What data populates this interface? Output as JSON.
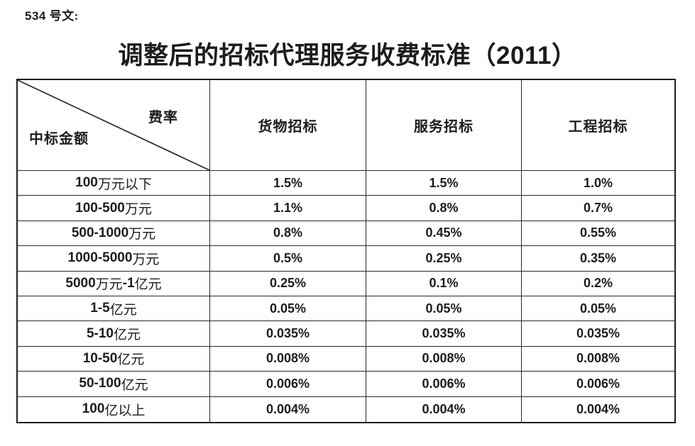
{
  "doc": {
    "ref_label": "534 号文:",
    "title": "调整后的招标代理服务收费标准（2011）"
  },
  "table": {
    "corner": {
      "col_axis_label": "费率",
      "row_axis_label": "中标金额"
    },
    "columns": [
      "货物招标",
      "服务招标",
      "工程招标"
    ],
    "rows": [
      {
        "label": "100 万元以下",
        "values": [
          "1.5%",
          "1.5%",
          "1.0%"
        ]
      },
      {
        "label": "100-500 万元",
        "values": [
          "1.1%",
          "0.8%",
          "0.7%"
        ]
      },
      {
        "label": "500-1000 万元",
        "values": [
          "0.8%",
          "0.45%",
          "0.55%"
        ]
      },
      {
        "label": "1000-5000 万元",
        "values": [
          "0.5%",
          "0.25%",
          "0.35%"
        ]
      },
      {
        "label": "5000 万元-1 亿元",
        "values": [
          "0.25%",
          "0.1%",
          "0.2%"
        ]
      },
      {
        "label": "1-5 亿元",
        "values": [
          "0.05%",
          "0.05%",
          "0.05%"
        ]
      },
      {
        "label": "5-10 亿元",
        "values": [
          "0.035%",
          "0.035%",
          "0.035%"
        ]
      },
      {
        "label": "10-50 亿元",
        "values": [
          "0.008%",
          "0.008%",
          "0.008%"
        ]
      },
      {
        "label": "50-100 亿元",
        "values": [
          "0.006%",
          "0.006%",
          "0.006%"
        ]
      },
      {
        "label": "100 亿以上",
        "values": [
          "0.004%",
          "0.004%",
          "0.004%"
        ]
      }
    ]
  },
  "colors": {
    "text": "#1c1c1c",
    "border": "#2a2a2a",
    "background": "#ffffff"
  }
}
